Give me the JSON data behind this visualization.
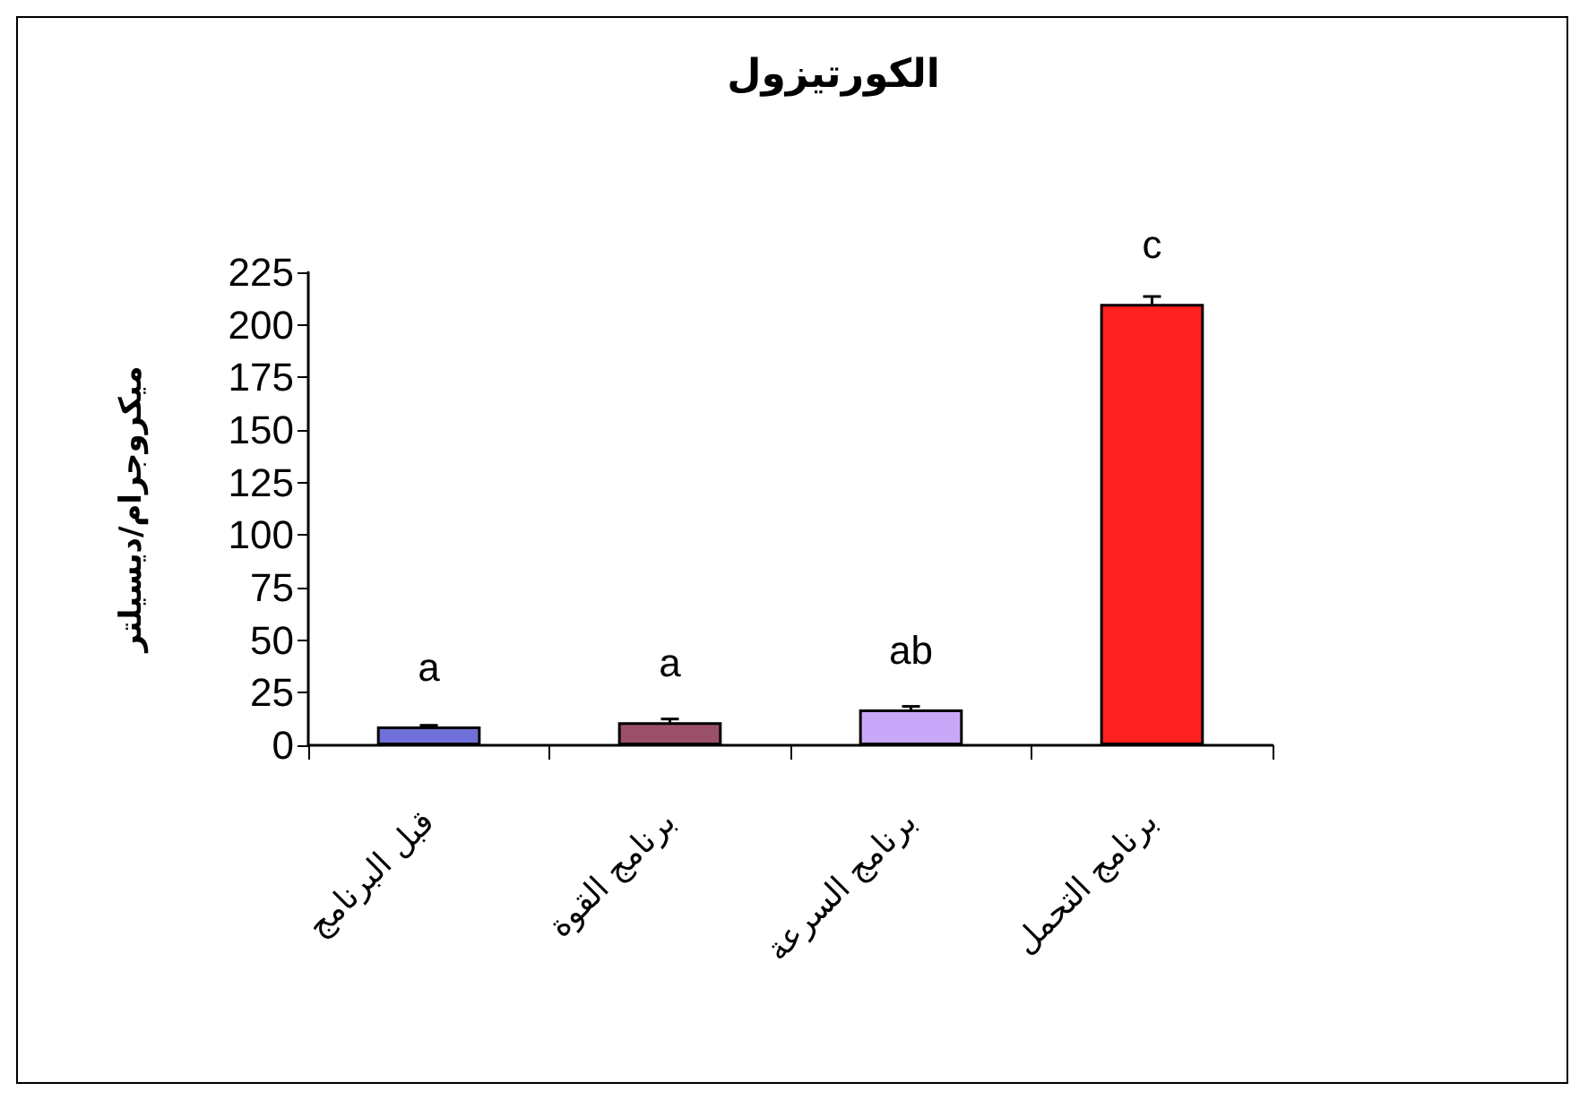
{
  "chart_data": {
    "type": "bar",
    "title": "الكورتيزول",
    "ylabel": "ميكروجرام/ديسيلتر",
    "categories": [
      "قبل البرنامج",
      "برنامج القوة",
      "برنامج السرعة",
      "برنامج التحمل"
    ],
    "values": [
      9,
      11,
      17,
      210
    ],
    "colors": [
      "#7070d8",
      "#9a5068",
      "#c8a8f8",
      "#ff2020"
    ],
    "errors": [
      0.5,
      1.5,
      1.5,
      3.5
    ],
    "ylim": [
      0,
      225
    ],
    "yticks": [
      0,
      25,
      50,
      75,
      100,
      125,
      150,
      175,
      200,
      225
    ],
    "annotations": [
      {
        "text": "a",
        "x": "قبل البرنامج",
        "y": 9
      },
      {
        "text": "a",
        "x": "برنامج القوة",
        "y": 11
      },
      {
        "text": "ab",
        "x": "برنامج السرعة",
        "y": 17
      },
      {
        "text": "c",
        "x": "برنامج التحمل",
        "y": 210
      }
    ]
  }
}
